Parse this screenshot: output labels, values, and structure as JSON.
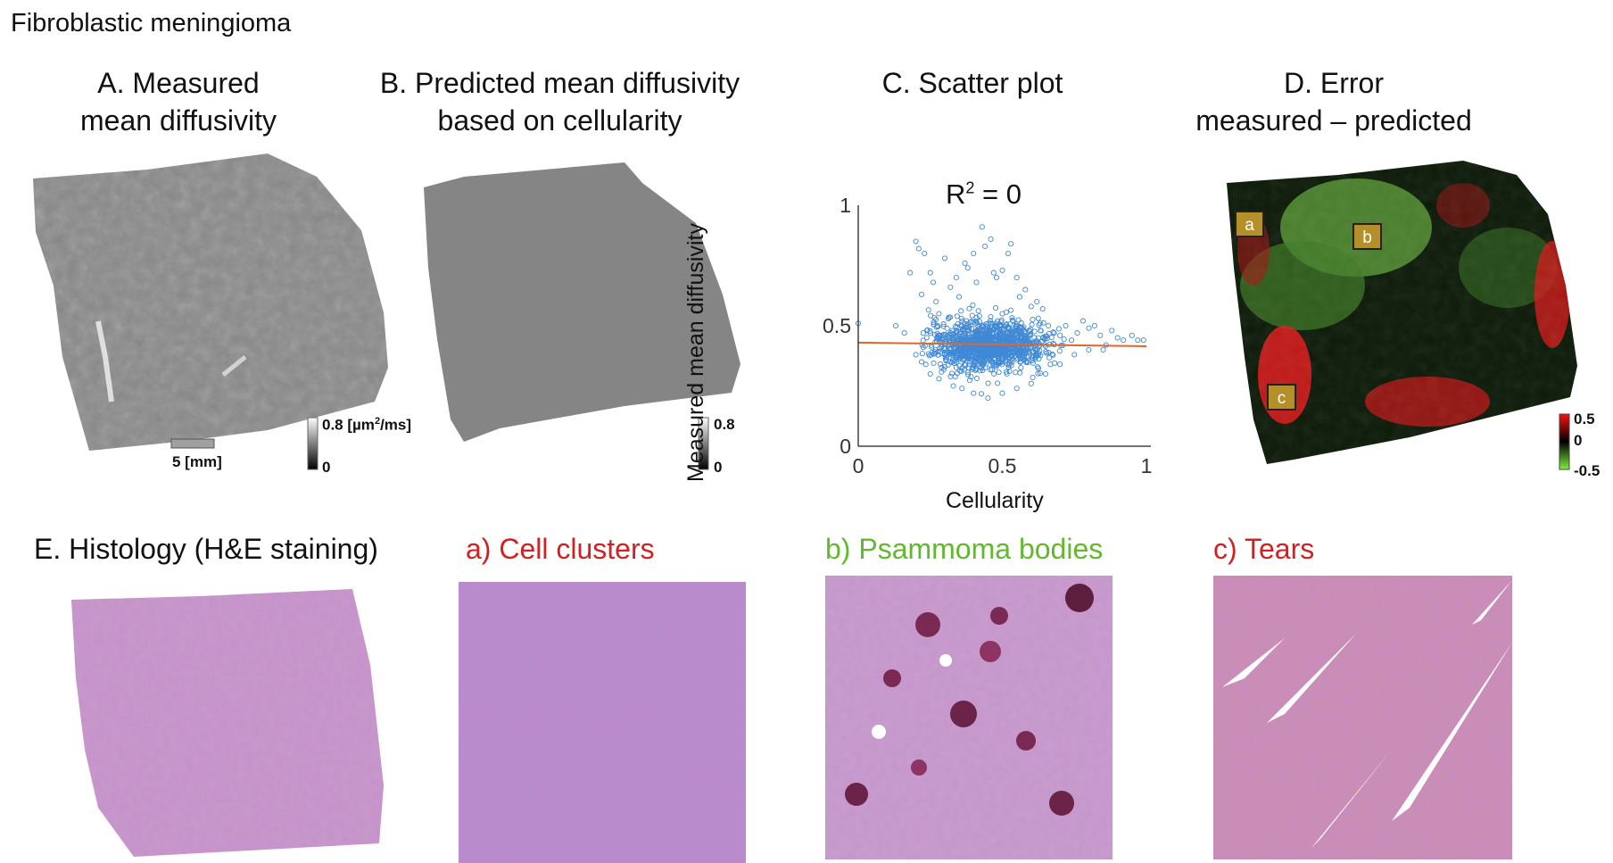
{
  "figure_title": "Fibroblastic meningioma",
  "panels": {
    "a": {
      "title_lines": [
        "A. Measured",
        "mean diffusivity"
      ],
      "colorbar_max": "0.8 [µm",
      "colorbar_unit_sup": "2",
      "colorbar_unit_tail": "/ms]",
      "colorbar_min": "0",
      "scalebar_label": "5 [mm]"
    },
    "b": {
      "title_lines": [
        "B. Predicted mean diffusivity",
        "based on cellularity"
      ],
      "colorbar_max": "0.8",
      "colorbar_min": "0"
    },
    "c": {
      "title": "C. Scatter plot",
      "r2_prefix": "R",
      "r2_sup": "2",
      "r2_suffix": " = 0"
    },
    "d": {
      "title_lines": [
        "D. Error",
        "measured – predicted"
      ],
      "colorbar_max": "0.5",
      "colorbar_mid": "0",
      "colorbar_min": "-0.5",
      "markers": [
        "a",
        "b",
        "c"
      ]
    },
    "e": {
      "title": "E. Histology (H&E staining)"
    },
    "insets": [
      {
        "title": "a) Cell clusters",
        "color": "#d42020"
      },
      {
        "title": "b) Psammoma bodies",
        "color": "#62b92f"
      },
      {
        "title": "c) Tears",
        "color": "#d42020"
      }
    ]
  },
  "chart_data": {
    "type": "scatter",
    "title": "C. Scatter plot",
    "xlabel": "Cellularity",
    "ylabel": "Measured mean diffusivity",
    "xlim": [
      0,
      1
    ],
    "ylim": [
      0,
      1
    ],
    "xticks": [
      "0",
      "0.5",
      "1"
    ],
    "yticks": [
      "0",
      "0.5",
      "1"
    ],
    "annotation": "R² = 0",
    "fit_line": {
      "x": [
        0,
        1
      ],
      "y": [
        0.43,
        0.415
      ]
    },
    "cloud": {
      "x_center": 0.45,
      "y_center": 0.42,
      "x_spread": 0.1,
      "y_spread": 0.05,
      "n": 1200
    },
    "points": [
      [
        0.0,
        0.51
      ],
      [
        0.13,
        0.5
      ],
      [
        0.16,
        0.47
      ],
      [
        0.18,
        0.72
      ],
      [
        0.2,
        0.85
      ],
      [
        0.21,
        0.82
      ],
      [
        0.23,
        0.8
      ],
      [
        0.22,
        0.63
      ],
      [
        0.25,
        0.72
      ],
      [
        0.26,
        0.68
      ],
      [
        0.27,
        0.6
      ],
      [
        0.28,
        0.55
      ],
      [
        0.3,
        0.78
      ],
      [
        0.32,
        0.66
      ],
      [
        0.34,
        0.7
      ],
      [
        0.35,
        0.62
      ],
      [
        0.37,
        0.76
      ],
      [
        0.38,
        0.74
      ],
      [
        0.4,
        0.8
      ],
      [
        0.41,
        0.68
      ],
      [
        0.43,
        0.91
      ],
      [
        0.44,
        0.83
      ],
      [
        0.46,
        0.86
      ],
      [
        0.47,
        0.72
      ],
      [
        0.48,
        0.7
      ],
      [
        0.5,
        0.73
      ],
      [
        0.52,
        0.8
      ],
      [
        0.53,
        0.84
      ],
      [
        0.55,
        0.7
      ],
      [
        0.56,
        0.62
      ],
      [
        0.58,
        0.65
      ],
      [
        0.6,
        0.58
      ],
      [
        0.62,
        0.6
      ],
      [
        0.64,
        0.57
      ],
      [
        0.66,
        0.5
      ],
      [
        0.68,
        0.47
      ],
      [
        0.7,
        0.46
      ],
      [
        0.72,
        0.5
      ],
      [
        0.74,
        0.44
      ],
      [
        0.76,
        0.47
      ],
      [
        0.78,
        0.52
      ],
      [
        0.8,
        0.49
      ],
      [
        0.82,
        0.5
      ],
      [
        0.84,
        0.46
      ],
      [
        0.86,
        0.42
      ],
      [
        0.88,
        0.48
      ],
      [
        0.9,
        0.45
      ],
      [
        0.92,
        0.44
      ],
      [
        0.95,
        0.46
      ],
      [
        0.97,
        0.44
      ],
      [
        0.99,
        0.44
      ],
      [
        0.2,
        0.38
      ],
      [
        0.22,
        0.35
      ],
      [
        0.25,
        0.3
      ],
      [
        0.28,
        0.28
      ],
      [
        0.3,
        0.33
      ],
      [
        0.33,
        0.25
      ],
      [
        0.36,
        0.24
      ],
      [
        0.4,
        0.22
      ],
      [
        0.45,
        0.2
      ],
      [
        0.5,
        0.22
      ],
      [
        0.55,
        0.24
      ],
      [
        0.6,
        0.26
      ],
      [
        0.65,
        0.3
      ],
      [
        0.7,
        0.34
      ],
      [
        0.75,
        0.38
      ],
      [
        0.8,
        0.4
      ],
      [
        0.85,
        0.4
      ]
    ]
  }
}
